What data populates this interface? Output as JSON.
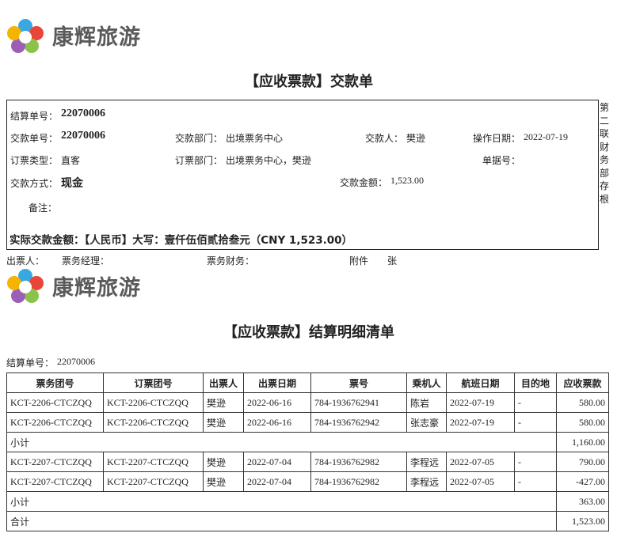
{
  "logo_text": "康辉旅游",
  "receipt": {
    "title": "【应收票款】交款单",
    "side_note": "第二联财务部存根",
    "settlement_no": {
      "label": "结算单号：",
      "value": "22070006"
    },
    "payment_no": {
      "label": "交款单号：",
      "value": "22070006"
    },
    "payment_dept": {
      "label": "交款部门：",
      "value": "出境票务中心"
    },
    "payer": {
      "label": "交款人：",
      "value": "樊逊"
    },
    "op_date": {
      "label": "操作日期：",
      "value": "2022-07-19"
    },
    "booking_type": {
      "label": "订票类型：",
      "value": "直客"
    },
    "booking_dept": {
      "label": "订票部门：",
      "value": "出境票务中心，樊逊"
    },
    "doc_no": {
      "label": "单据号："
    },
    "pay_method": {
      "label": "交款方式：",
      "value": "现金"
    },
    "amount": {
      "label": "交款金额：",
      "value": "1,523.00"
    },
    "remark": {
      "label": "备注："
    },
    "actual_amount": "实际交款金额：【人民币】大写：壹仟伍佰贰拾叁元（CNY 1,523.00）"
  },
  "signatures": [
    "出票人：",
    "票务经理：",
    "票务财务：",
    "附件",
    "张"
  ],
  "detail": {
    "title": "【应收票款】结算明细清单",
    "settlement_no": {
      "label": "结算单号：",
      "value": "22070006"
    },
    "table": {
      "headers": [
        "票务团号",
        "订票团号",
        "出票人",
        "出票日期",
        "票号",
        "乘机人",
        "航班日期",
        "目的地",
        "应收票款"
      ],
      "rows": [
        [
          "KCT-2206-CTCZQQ",
          "KCT-2206-CTCZQQ",
          "樊逊",
          "2022-06-16",
          "784-1936762941",
          "陈岩",
          "2022-07-19",
          "-",
          "580.00"
        ],
        [
          "KCT-2206-CTCZQQ",
          "KCT-2206-CTCZQQ",
          "樊逊",
          "2022-06-16",
          "784-1936762942",
          "张志豪",
          "2022-07-19",
          "-",
          "580.00"
        ],
        [
          "小计",
          "1,160.00"
        ],
        [
          "KCT-2207-CTCZQQ",
          "KCT-2207-CTCZQQ",
          "樊逊",
          "2022-07-04",
          "784-1936762982",
          "李程远",
          "2022-07-05",
          "-",
          "790.00"
        ],
        [
          "KCT-2207-CTCZQQ",
          "KCT-2207-CTCZQQ",
          "樊逊",
          "2022-07-04",
          "784-1936762982",
          "李程远",
          "2022-07-05",
          "-",
          "-427.00"
        ],
        [
          "小计",
          "363.00"
        ],
        [
          "合计",
          "1,523.00"
        ]
      ]
    }
  }
}
